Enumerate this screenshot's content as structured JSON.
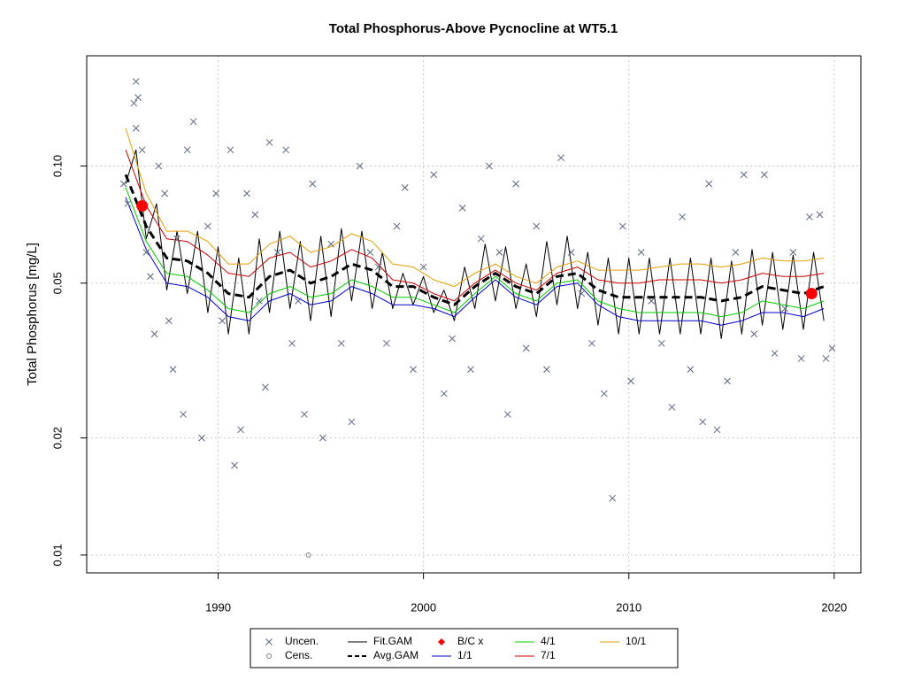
{
  "chart_data": {
    "type": "timeseries",
    "title": "Total Phosphorus-Above Pycnocline at WT5.1",
    "y_label": "Total Phosphorus [mg/L]",
    "log_y": true,
    "grid": true,
    "xlim": [
      1983.6,
      2021.3
    ],
    "ylim": [
      0.009,
      0.192
    ],
    "xticks": [
      1990,
      2000,
      2010,
      2020
    ],
    "yticks": [
      0.01,
      0.02,
      0.05,
      {
        "value": 0.1,
        "label": "0.10"
      }
    ],
    "series": [
      {
        "name": "Uncen.",
        "color": "#5a6680",
        "marker": "x",
        "x": [
          1985.4,
          1985.6,
          1985.9,
          1986.0,
          1986.1,
          1986.0,
          1986.3,
          1986.5,
          1986.7,
          1986.9,
          1987.1,
          1987.4,
          1987.6,
          1987.8,
          1988.0,
          1988.3,
          1988.5,
          1988.8,
          1989.2,
          1989.5,
          1989.9,
          1990.2,
          1990.6,
          1990.8,
          1991.1,
          1991.4,
          1991.8,
          1992.0,
          1992.3,
          1992.5,
          1992.9,
          1993.3,
          1993.6,
          1993.9,
          1994.2,
          1994.6,
          1995.1,
          1995.5,
          1996.0,
          1996.5,
          1996.9,
          1997.4,
          1997.8,
          1998.2,
          1998.7,
          1999.1,
          1999.5,
          2000.0,
          2000.5,
          2001.0,
          2001.4,
          2001.9,
          2002.3,
          2002.8,
          2003.2,
          2003.7,
          2004.1,
          2004.5,
          2005.0,
          2005.5,
          2006.0,
          2006.7,
          2007.2,
          2007.7,
          2008.2,
          2008.8,
          2009.2,
          2009.7,
          2010.1,
          2010.6,
          2011.1,
          2011.6,
          2012.1,
          2012.6,
          2013.0,
          2013.6,
          2013.9,
          2014.3,
          2014.8,
          2015.2,
          2015.6,
          2016.1,
          2016.6,
          2017.1,
          2017.6,
          2018.0,
          2018.4,
          2018.8,
          2019.3,
          2019.6,
          2019.9
        ],
        "values": [
          0.09,
          0.08,
          0.145,
          0.165,
          0.15,
          0.125,
          0.11,
          0.06,
          0.052,
          0.037,
          0.1,
          0.085,
          0.04,
          0.03,
          0.065,
          0.023,
          0.11,
          0.13,
          0.02,
          0.07,
          0.085,
          0.04,
          0.11,
          0.017,
          0.021,
          0.085,
          0.075,
          0.045,
          0.027,
          0.115,
          0.06,
          0.11,
          0.035,
          0.045,
          0.023,
          0.09,
          0.02,
          0.063,
          0.035,
          0.022,
          0.1,
          0.06,
          0.055,
          0.035,
          0.07,
          0.088,
          0.03,
          0.055,
          0.095,
          0.026,
          0.036,
          0.078,
          0.03,
          0.065,
          0.1,
          0.06,
          0.023,
          0.09,
          0.034,
          0.07,
          0.03,
          0.105,
          0.06,
          0.047,
          0.035,
          0.026,
          0.014,
          0.07,
          0.028,
          0.06,
          0.045,
          0.035,
          0.024,
          0.074,
          0.03,
          0.022,
          0.09,
          0.021,
          0.028,
          0.06,
          0.095,
          0.037,
          0.095,
          0.033,
          0.043,
          0.06,
          0.032,
          0.074,
          0.075,
          0.032,
          0.034
        ]
      },
      {
        "name": "Cens.",
        "color": "#808080",
        "marker": "circle",
        "x": [
          1994.4
        ],
        "values": [
          0.01
        ]
      },
      {
        "name": "Fit.GAM",
        "color": "#000000",
        "line": "solid",
        "width": 1,
        "x": [
          1985.5,
          1986,
          1986.5,
          1987,
          1987.5,
          1988,
          1988.5,
          1989,
          1989.5,
          1990,
          1990.5,
          1991,
          1991.5,
          1992,
          1992.5,
          1993,
          1993.5,
          1994,
          1994.5,
          1995,
          1995.5,
          1996,
          1996.5,
          1997,
          1997.5,
          1998,
          1998.5,
          1999,
          1999.5,
          2000,
          2000.5,
          2001,
          2001.5,
          2002,
          2002.5,
          2003,
          2003.5,
          2004,
          2004.5,
          2005,
          2005.5,
          2006,
          2006.5,
          2007,
          2007.5,
          2008,
          2008.5,
          2009,
          2009.5,
          2010,
          2010.5,
          2011,
          2011.5,
          2012,
          2012.5,
          2013,
          2013.5,
          2014,
          2014.5,
          2015,
          2015.5,
          2016,
          2016.5,
          2017,
          2017.5,
          2018,
          2018.5,
          2019,
          2019.5
        ],
        "values": [
          0.09,
          0.11,
          0.065,
          0.08,
          0.048,
          0.068,
          0.047,
          0.068,
          0.042,
          0.062,
          0.037,
          0.058,
          0.037,
          0.065,
          0.042,
          0.068,
          0.043,
          0.064,
          0.04,
          0.066,
          0.041,
          0.069,
          0.045,
          0.068,
          0.043,
          0.06,
          0.043,
          0.053,
          0.044,
          0.052,
          0.042,
          0.048,
          0.04,
          0.055,
          0.043,
          0.063,
          0.045,
          0.062,
          0.043,
          0.056,
          0.041,
          0.064,
          0.044,
          0.066,
          0.043,
          0.06,
          0.039,
          0.058,
          0.037,
          0.058,
          0.037,
          0.058,
          0.037,
          0.058,
          0.037,
          0.058,
          0.037,
          0.058,
          0.036,
          0.057,
          0.037,
          0.061,
          0.039,
          0.06,
          0.038,
          0.059,
          0.038,
          0.06,
          0.04
        ]
      },
      {
        "name": "Avg.GAM",
        "color": "#000000",
        "line": "dashed",
        "width": 3,
        "x": [
          1985.5,
          1986.5,
          1987.5,
          1988.5,
          1989.5,
          1990.5,
          1991.5,
          1992.5,
          1993.5,
          1994.5,
          1995.5,
          1996.5,
          1997.5,
          1998.5,
          1999.5,
          2000.5,
          2001.5,
          2002.5,
          2003.5,
          2004.5,
          2005.5,
          2006.5,
          2007.5,
          2008.5,
          2009.5,
          2010.5,
          2011.5,
          2012.5,
          2013.5,
          2014.5,
          2015.5,
          2016.5,
          2017.5,
          2018.5,
          2019.5
        ],
        "values": [
          0.095,
          0.07,
          0.058,
          0.057,
          0.053,
          0.047,
          0.046,
          0.052,
          0.054,
          0.05,
          0.052,
          0.056,
          0.054,
          0.049,
          0.049,
          0.046,
          0.044,
          0.049,
          0.053,
          0.049,
          0.047,
          0.052,
          0.053,
          0.048,
          0.046,
          0.046,
          0.046,
          0.046,
          0.046,
          0.045,
          0.046,
          0.049,
          0.048,
          0.047,
          0.049
        ]
      },
      {
        "name": "B/C x",
        "color": "#ff0000",
        "marker": "dot",
        "x": [
          1986.3,
          2018.9
        ],
        "values": [
          0.079,
          0.047
        ]
      },
      {
        "name": "1/1",
        "color": "#0000cc",
        "line": "solid",
        "width": 1,
        "x": [
          1985.5,
          1986.5,
          1987.5,
          1988.5,
          1989.5,
          1990.5,
          1991.5,
          1992.5,
          1993.5,
          1994.5,
          1995.5,
          1996.5,
          1997.5,
          1998.5,
          1999.5,
          2000.5,
          2001.5,
          2002.5,
          2003.5,
          2004.5,
          2005.5,
          2006.5,
          2007.5,
          2008.5,
          2009.5,
          2010.5,
          2011.5,
          2012.5,
          2013.5,
          2014.5,
          2015.5,
          2016.5,
          2017.5,
          2018.5,
          2019.5
        ],
        "values": [
          0.083,
          0.061,
          0.05,
          0.049,
          0.046,
          0.041,
          0.04,
          0.045,
          0.047,
          0.044,
          0.045,
          0.049,
          0.047,
          0.044,
          0.044,
          0.043,
          0.041,
          0.046,
          0.051,
          0.046,
          0.044,
          0.049,
          0.05,
          0.044,
          0.041,
          0.04,
          0.04,
          0.04,
          0.04,
          0.039,
          0.04,
          0.042,
          0.042,
          0.041,
          0.043
        ]
      },
      {
        "name": "4/1",
        "color": "#00cc00",
        "line": "solid",
        "width": 1,
        "x": [
          1985.5,
          1986.5,
          1987.5,
          1988.5,
          1989.5,
          1990.5,
          1991.5,
          1992.5,
          1993.5,
          1994.5,
          1995.5,
          1996.5,
          1997.5,
          1998.5,
          1999.5,
          2000.5,
          2001.5,
          2002.5,
          2003.5,
          2004.5,
          2005.5,
          2006.5,
          2007.5,
          2008.5,
          2009.5,
          2010.5,
          2011.5,
          2012.5,
          2013.5,
          2014.5,
          2015.5,
          2016.5,
          2017.5,
          2018.5,
          2019.5
        ],
        "values": [
          0.088,
          0.064,
          0.053,
          0.052,
          0.048,
          0.043,
          0.042,
          0.047,
          0.049,
          0.046,
          0.047,
          0.051,
          0.049,
          0.046,
          0.046,
          0.044,
          0.042,
          0.047,
          0.052,
          0.047,
          0.045,
          0.05,
          0.051,
          0.045,
          0.043,
          0.042,
          0.042,
          0.042,
          0.042,
          0.041,
          0.042,
          0.045,
          0.044,
          0.043,
          0.045
        ]
      },
      {
        "name": "7/1",
        "color": "#cc0000",
        "line": "solid",
        "width": 1,
        "x": [
          1985.5,
          1986.5,
          1987.5,
          1988.5,
          1989.5,
          1990.5,
          1991.5,
          1992.5,
          1993.5,
          1994.5,
          1995.5,
          1996.5,
          1997.5,
          1998.5,
          1999.5,
          2000.5,
          2001.5,
          2002.5,
          2003.5,
          2004.5,
          2005.5,
          2006.5,
          2007.5,
          2008.5,
          2009.5,
          2010.5,
          2011.5,
          2012.5,
          2013.5,
          2014.5,
          2015.5,
          2016.5,
          2017.5,
          2018.5,
          2019.5
        ],
        "values": [
          0.11,
          0.079,
          0.065,
          0.064,
          0.059,
          0.053,
          0.052,
          0.058,
          0.06,
          0.055,
          0.057,
          0.061,
          0.058,
          0.051,
          0.05,
          0.047,
          0.045,
          0.05,
          0.054,
          0.05,
          0.048,
          0.053,
          0.055,
          0.051,
          0.05,
          0.05,
          0.051,
          0.051,
          0.051,
          0.05,
          0.051,
          0.053,
          0.052,
          0.052,
          0.053
        ]
      },
      {
        "name": "10/1",
        "color": "#e69f00",
        "line": "solid",
        "width": 1,
        "x": [
          1985.5,
          1986.5,
          1987.5,
          1988.5,
          1989.5,
          1990.5,
          1991.5,
          1992.5,
          1993.5,
          1994.5,
          1995.5,
          1996.5,
          1997.5,
          1998.5,
          1999.5,
          2000.5,
          2001.5,
          2002.5,
          2003.5,
          2004.5,
          2005.5,
          2006.5,
          2007.5,
          2008.5,
          2009.5,
          2010.5,
          2011.5,
          2012.5,
          2013.5,
          2014.5,
          2015.5,
          2016.5,
          2017.5,
          2018.5,
          2019.5
        ],
        "values": [
          0.125,
          0.085,
          0.068,
          0.068,
          0.064,
          0.056,
          0.056,
          0.063,
          0.066,
          0.06,
          0.062,
          0.067,
          0.064,
          0.056,
          0.055,
          0.051,
          0.049,
          0.053,
          0.056,
          0.052,
          0.05,
          0.055,
          0.057,
          0.054,
          0.054,
          0.054,
          0.055,
          0.056,
          0.056,
          0.055,
          0.056,
          0.058,
          0.057,
          0.057,
          0.058
        ]
      }
    ]
  }
}
